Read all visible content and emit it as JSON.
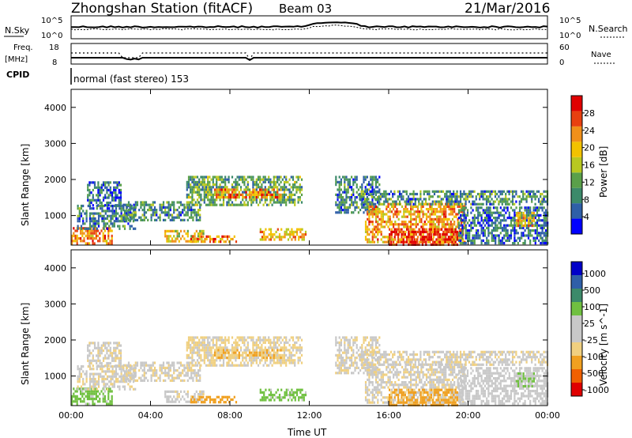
{
  "header": {
    "station": "Zhongshan Station (fitACF)",
    "beam": "Beam 03",
    "date": "21/Mar/2016"
  },
  "strip_noise": {
    "left_label": "N.Sky",
    "right_label": "N.Search",
    "left_ticks": [
      "10^5",
      "10^0"
    ],
    "right_ticks": [
      "10^5",
      "10^0"
    ]
  },
  "strip_freq": {
    "left_label_1": "Freq.",
    "left_label_2": "[MHz]",
    "left_ticks": [
      "18",
      "8"
    ],
    "right_label": "Nave",
    "right_ticks": [
      "60",
      "0"
    ]
  },
  "strip_cpid": {
    "label": "CPID",
    "text": "normal (fast stereo) 153"
  },
  "x_axis": {
    "label": "Time UT",
    "ticks": [
      "00:00",
      "04:00",
      "08:00",
      "12:00",
      "16:00",
      "20:00",
      "00:00"
    ]
  },
  "colors": {
    "power": [
      "#0000ff",
      "#2f5fa8",
      "#3c8a6a",
      "#5aa04a",
      "#b8c820",
      "#f2c200",
      "#f0901a",
      "#e84010",
      "#e00000"
    ],
    "velocity": [
      "#e00000",
      "#f06000",
      "#f0a020",
      "#f0d080",
      "#c8c8c8",
      "#c8c8c8",
      "#70c040",
      "#3c8a6a",
      "#2f5fa8",
      "#0000c8"
    ]
  },
  "chart_data": [
    {
      "type": "heatmap",
      "panel": "power",
      "ylabel": "Slant Range [km]",
      "ylim": [
        180,
        4500
      ],
      "y_ticks": [
        "1000",
        "2000",
        "3000",
        "4000"
      ],
      "y_tick_values": [
        1000,
        2000,
        3000,
        4000
      ],
      "xlim_hours": [
        0,
        24
      ],
      "colorbar": {
        "label": "Power [dB]",
        "ticks": [
          "4",
          "8",
          "12",
          "16",
          "20",
          "24",
          "28"
        ],
        "range": [
          0,
          30
        ]
      },
      "regions": [
        {
          "t": [
            0.0,
            2.1
          ],
          "r": [
            250,
            680
          ],
          "value": 22
        },
        {
          "t": [
            0.3,
            3.2
          ],
          "r": [
            650,
            1300
          ],
          "value": 8
        },
        {
          "t": [
            0.8,
            2.5
          ],
          "r": [
            1300,
            1950
          ],
          "value": 6
        },
        {
          "t": [
            2.6,
            6.5
          ],
          "r": [
            900,
            1400
          ],
          "value": 9
        },
        {
          "t": [
            4.7,
            6.7
          ],
          "r": [
            300,
            600
          ],
          "value": 18
        },
        {
          "t": [
            6.0,
            8.5
          ],
          "r": [
            250,
            450
          ],
          "value": 22
        },
        {
          "t": [
            5.8,
            11.6
          ],
          "r": [
            1300,
            2100
          ],
          "value": 11
        },
        {
          "t": [
            7.2,
            10.6
          ],
          "r": [
            1500,
            1750
          ],
          "value": 22
        },
        {
          "t": [
            9.5,
            11.8
          ],
          "r": [
            300,
            650
          ],
          "value": 20
        },
        {
          "t": [
            13.3,
            15.5
          ],
          "r": [
            1050,
            2100
          ],
          "value": 8
        },
        {
          "t": [
            14.8,
            19.8
          ],
          "r": [
            250,
            1350
          ],
          "value": 21
        },
        {
          "t": [
            16.0,
            19.5
          ],
          "r": [
            200,
            650
          ],
          "value": 27
        },
        {
          "t": [
            14.5,
            24.0
          ],
          "r": [
            1300,
            1700
          ],
          "value": 9
        },
        {
          "t": [
            19.5,
            24.0
          ],
          "r": [
            250,
            1250
          ],
          "value": 7
        },
        {
          "t": [
            22.4,
            23.3
          ],
          "r": [
            700,
            1100
          ],
          "value": 20
        }
      ]
    },
    {
      "type": "heatmap",
      "panel": "velocity",
      "ylabel": "Slant Range [km]",
      "ylim": [
        180,
        4500
      ],
      "y_ticks": [
        "1000",
        "2000",
        "3000",
        "4000"
      ],
      "y_tick_values": [
        1000,
        2000,
        3000,
        4000
      ],
      "xlim_hours": [
        0,
        24
      ],
      "colorbar": {
        "label": "Velocity [m s^-1]",
        "ticks": [
          "1000",
          "500",
          "100",
          "25",
          "-25",
          "-100",
          "-500",
          "-1000"
        ]
      },
      "regions": [
        {
          "t": [
            0.0,
            2.1
          ],
          "r": [
            250,
            680
          ],
          "value": 150
        },
        {
          "t": [
            0.3,
            3.2
          ],
          "r": [
            650,
            1300
          ],
          "value": 0
        },
        {
          "t": [
            0.8,
            2.5
          ],
          "r": [
            1300,
            1950
          ],
          "value": 0
        },
        {
          "t": [
            2.6,
            6.5
          ],
          "r": [
            900,
            1400
          ],
          "value": 0
        },
        {
          "t": [
            4.7,
            6.7
          ],
          "r": [
            300,
            600
          ],
          "value": 20
        },
        {
          "t": [
            6.0,
            8.5
          ],
          "r": [
            250,
            450
          ],
          "value": -200
        },
        {
          "t": [
            5.8,
            11.6
          ],
          "r": [
            1300,
            2100
          ],
          "value": -40
        },
        {
          "t": [
            7.2,
            10.6
          ],
          "r": [
            1500,
            1750
          ],
          "value": -80
        },
        {
          "t": [
            9.5,
            11.8
          ],
          "r": [
            300,
            650
          ],
          "value": 150
        },
        {
          "t": [
            13.3,
            15.5
          ],
          "r": [
            1050,
            2100
          ],
          "value": 0
        },
        {
          "t": [
            14.8,
            19.8
          ],
          "r": [
            250,
            1350
          ],
          "value": 0
        },
        {
          "t": [
            16.0,
            19.5
          ],
          "r": [
            200,
            650
          ],
          "value": -150
        },
        {
          "t": [
            14.5,
            24.0
          ],
          "r": [
            1300,
            1700
          ],
          "value": 0
        },
        {
          "t": [
            19.5,
            24.0
          ],
          "r": [
            250,
            1250
          ],
          "value": 40
        },
        {
          "t": [
            22.4,
            23.3
          ],
          "r": [
            700,
            1100
          ],
          "value": 120
        }
      ]
    }
  ]
}
